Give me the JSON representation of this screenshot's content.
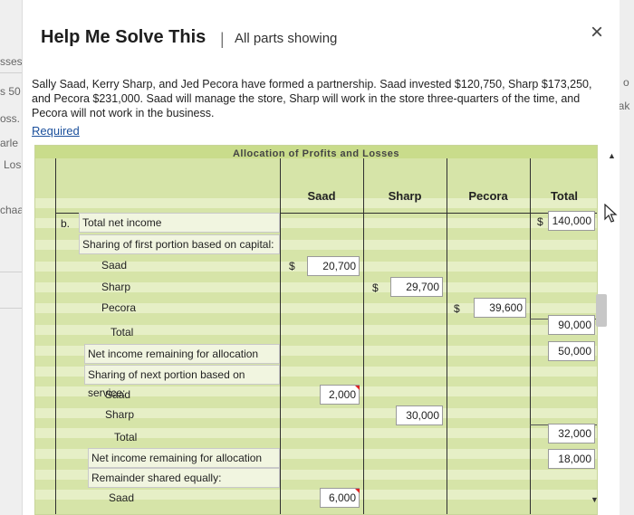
{
  "background": {
    "left_fragments": [
      "sses",
      "s 50",
      "oss. (",
      "arle",
      "Loss",
      "chaaf"
    ],
    "right_fragments": [
      "g o",
      "iak"
    ]
  },
  "dialog": {
    "title": "Help Me Solve This",
    "separator": "|",
    "subtitle": "All parts showing",
    "close_icon": "×"
  },
  "problem": {
    "text_lines": [
      "Sally Saad, Kerry Sharp, and Jed Pecora have formed a partnership. Saad invested $120,750, Sharp $173,250,",
      "and Pecora $231,000. Saad will manage the store, Sharp will work in the store three-quarters of the time, and",
      "Pecora will not work in the business."
    ],
    "required_link": "Required"
  },
  "worksheet": {
    "title": "Allocation of Profits and Losses",
    "columns": [
      "Saad",
      "Sharp",
      "Pecora",
      "Total"
    ],
    "part_letter": "b.",
    "currency": "$",
    "rows": {
      "total_net_income": {
        "label": "Total net income",
        "total": "140,000"
      },
      "capital_header": {
        "label": "Sharing of first portion based on capital:"
      },
      "cap_saad": {
        "label": "Saad",
        "saad": "20,700"
      },
      "cap_sharp": {
        "label": "Sharp",
        "sharp": "29,700"
      },
      "cap_pecora": {
        "label": "Pecora",
        "pecora": "39,600"
      },
      "cap_total": {
        "label": "Total",
        "total": "90,000"
      },
      "remaining_1": {
        "label": "Net income remaining for allocation",
        "total": "50,000"
      },
      "service_header": {
        "label": "Sharing of next portion based on service:"
      },
      "svc_saad": {
        "label": "Saad",
        "saad": "2,000"
      },
      "svc_sharp": {
        "label": "Sharp",
        "sharp": "30,000"
      },
      "svc_total": {
        "label": "Total",
        "total": "32,000"
      },
      "remaining_2": {
        "label": "Net income remaining for allocation",
        "total": "18,000"
      },
      "equal_header": {
        "label": "Remainder shared equally:"
      },
      "eq_saad": {
        "label": "Saad",
        "saad": "6,000"
      }
    }
  },
  "colors": {
    "sheet_green": "#d6e4a8",
    "header_green": "#c9dc8b",
    "link_blue": "#1a4f9c"
  }
}
